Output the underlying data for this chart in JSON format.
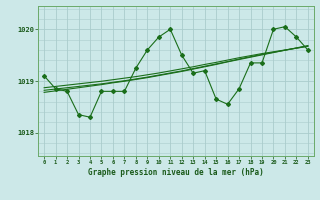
{
  "title": "Graphe pression niveau de la mer (hPa)",
  "bg_color": "#cce8e8",
  "grid_color": "#aacccc",
  "line_color": "#1a6e1a",
  "x_labels": [
    "0",
    "1",
    "2",
    "3",
    "4",
    "5",
    "6",
    "7",
    "8",
    "9",
    "10",
    "11",
    "12",
    "13",
    "14",
    "15",
    "16",
    "17",
    "18",
    "19",
    "20",
    "21",
    "22",
    "23"
  ],
  "ylim": [
    1017.55,
    1020.45
  ],
  "yticks": [
    1018,
    1019,
    1020
  ],
  "data_line": [
    1019.1,
    1018.85,
    1018.8,
    1018.35,
    1018.3,
    1018.8,
    1018.8,
    1018.8,
    1019.25,
    1019.6,
    1019.85,
    1020.0,
    1019.5,
    1019.15,
    1019.2,
    1018.65,
    1018.55,
    1018.85,
    1019.35,
    1019.35,
    1020.0,
    1020.05,
    1019.85,
    1019.6
  ],
  "trend_line1": [
    1018.82,
    1018.845,
    1018.87,
    1018.895,
    1018.92,
    1018.945,
    1018.975,
    1019.005,
    1019.04,
    1019.075,
    1019.115,
    1019.155,
    1019.195,
    1019.24,
    1019.285,
    1019.33,
    1019.375,
    1019.425,
    1019.47,
    1019.515,
    1019.555,
    1019.595,
    1019.635,
    1019.675
  ],
  "trend_line2": [
    1018.78,
    1018.81,
    1018.84,
    1018.87,
    1018.9,
    1018.93,
    1018.965,
    1018.995,
    1019.03,
    1019.065,
    1019.105,
    1019.145,
    1019.185,
    1019.23,
    1019.275,
    1019.32,
    1019.37,
    1019.415,
    1019.46,
    1019.505,
    1019.55,
    1019.595,
    1019.64,
    1019.685
  ],
  "trend_line3": [
    1018.87,
    1018.895,
    1018.92,
    1018.945,
    1018.97,
    1018.995,
    1019.025,
    1019.055,
    1019.085,
    1019.12,
    1019.155,
    1019.195,
    1019.235,
    1019.275,
    1019.32,
    1019.36,
    1019.405,
    1019.45,
    1019.49,
    1019.53,
    1019.565,
    1019.6,
    1019.635,
    1019.67
  ]
}
